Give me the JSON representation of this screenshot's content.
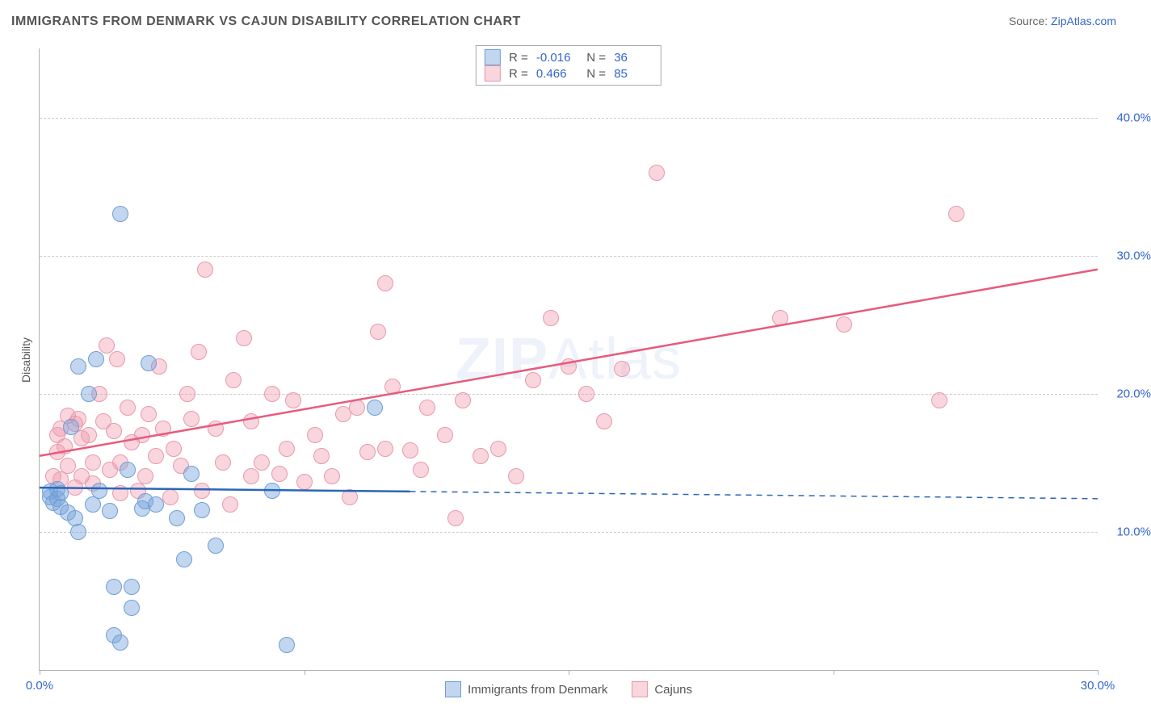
{
  "title": "IMMIGRANTS FROM DENMARK VS CAJUN DISABILITY CORRELATION CHART",
  "source_label": "Source: ",
  "source_link": "ZipAtlas.com",
  "ylabel": "Disability",
  "watermark_bold": "ZIP",
  "watermark_thin": "Atlas",
  "colors": {
    "blue_fill": "rgba(120,165,220,0.45)",
    "blue_stroke": "#6f9ed6",
    "pink_fill": "rgba(240,150,170,0.40)",
    "pink_stroke": "#e89aab",
    "blue_line": "#2a66b8",
    "pink_line": "#e85a7c",
    "axis_value": "#3366cc",
    "grid": "#cccccc"
  },
  "chart": {
    "type": "scatter",
    "x_range_pct": [
      0,
      30
    ],
    "y_range_pct": [
      0,
      45
    ],
    "y_ticks_pct": [
      10,
      20,
      30,
      40
    ],
    "y_tick_labels": [
      "10.0%",
      "20.0%",
      "30.0%",
      "40.0%"
    ],
    "x_ticks_pct": [
      0,
      7.5,
      15,
      22.5,
      30
    ],
    "x_tick_labels": [
      "0.0%",
      "",
      "",
      "",
      "30.0%"
    ],
    "marker_radius": 9,
    "marker_opacity": 0.45,
    "background": "#ffffff"
  },
  "stats_box": {
    "rows": [
      {
        "swatch": "blue",
        "r_label": "R =",
        "r": "-0.016",
        "n_label": "N =",
        "n": "36"
      },
      {
        "swatch": "pink",
        "r_label": "R =",
        "r": "0.466",
        "n_label": "N =",
        "n": "85"
      }
    ]
  },
  "legend_bottom": [
    {
      "swatch": "blue",
      "label": "Immigrants from Denmark"
    },
    {
      "swatch": "pink",
      "label": "Cajuns"
    }
  ],
  "trendlines": {
    "blue": {
      "y_at_x0_pct": 13.2,
      "y_at_x30_pct": 12.4,
      "solid_x_end_pct": 10.5,
      "stroke_width": 2.5
    },
    "pink": {
      "y_at_x0_pct": 15.5,
      "y_at_x30_pct": 29.0,
      "solid_x_end_pct": 30,
      "stroke_width": 2.5
    }
  },
  "points_blue": [
    [
      0.3,
      12.5
    ],
    [
      0.3,
      12.9
    ],
    [
      0.4,
      12.1
    ],
    [
      0.5,
      13.1
    ],
    [
      0.5,
      12.4
    ],
    [
      0.6,
      11.8
    ],
    [
      0.6,
      12.8
    ],
    [
      0.8,
      11.4
    ],
    [
      0.9,
      17.6
    ],
    [
      1.0,
      11.0
    ],
    [
      1.1,
      10.0
    ],
    [
      1.1,
      22.0
    ],
    [
      1.4,
      20.0
    ],
    [
      1.5,
      12.0
    ],
    [
      1.6,
      22.5
    ],
    [
      1.7,
      13.0
    ],
    [
      2.0,
      11.5
    ],
    [
      2.1,
      6.0
    ],
    [
      2.1,
      2.5
    ],
    [
      2.3,
      2.0
    ],
    [
      2.3,
      33.0
    ],
    [
      2.5,
      14.5
    ],
    [
      2.6,
      6.0
    ],
    [
      2.6,
      4.5
    ],
    [
      2.9,
      11.7
    ],
    [
      3.0,
      12.2
    ],
    [
      3.1,
      22.2
    ],
    [
      3.3,
      12.0
    ],
    [
      3.9,
      11.0
    ],
    [
      4.1,
      8.0
    ],
    [
      4.3,
      14.2
    ],
    [
      4.6,
      11.6
    ],
    [
      5.0,
      9.0
    ],
    [
      6.6,
      13.0
    ],
    [
      7.0,
      1.8
    ],
    [
      9.5,
      19.0
    ]
  ],
  "points_pink": [
    [
      0.4,
      14.0
    ],
    [
      0.5,
      17.0
    ],
    [
      0.5,
      15.8
    ],
    [
      0.6,
      17.5
    ],
    [
      0.6,
      13.8
    ],
    [
      0.7,
      16.2
    ],
    [
      0.8,
      14.8
    ],
    [
      0.8,
      18.4
    ],
    [
      1.0,
      17.8
    ],
    [
      1.0,
      13.2
    ],
    [
      1.1,
      18.2
    ],
    [
      1.2,
      16.8
    ],
    [
      1.2,
      14.0
    ],
    [
      1.4,
      17.0
    ],
    [
      1.5,
      15.0
    ],
    [
      1.5,
      13.5
    ],
    [
      1.7,
      20.0
    ],
    [
      1.8,
      18.0
    ],
    [
      1.9,
      23.5
    ],
    [
      2.0,
      14.5
    ],
    [
      2.1,
      17.3
    ],
    [
      2.2,
      22.5
    ],
    [
      2.3,
      15.0
    ],
    [
      2.3,
      12.8
    ],
    [
      2.5,
      19.0
    ],
    [
      2.6,
      16.5
    ],
    [
      2.8,
      13.0
    ],
    [
      2.9,
      17.0
    ],
    [
      3.0,
      14.0
    ],
    [
      3.1,
      18.5
    ],
    [
      3.3,
      15.5
    ],
    [
      3.4,
      22.0
    ],
    [
      3.5,
      17.5
    ],
    [
      3.7,
      12.5
    ],
    [
      3.8,
      16.0
    ],
    [
      4.0,
      14.8
    ],
    [
      4.2,
      20.0
    ],
    [
      4.3,
      18.2
    ],
    [
      4.5,
      23.0
    ],
    [
      4.6,
      13.0
    ],
    [
      4.7,
      29.0
    ],
    [
      5.0,
      17.5
    ],
    [
      5.2,
      15.0
    ],
    [
      5.4,
      12.0
    ],
    [
      5.5,
      21.0
    ],
    [
      5.8,
      24.0
    ],
    [
      6.0,
      14.0
    ],
    [
      6.0,
      18.0
    ],
    [
      6.3,
      15.0
    ],
    [
      6.6,
      20.0
    ],
    [
      6.8,
      14.2
    ],
    [
      7.0,
      16.0
    ],
    [
      7.2,
      19.5
    ],
    [
      7.5,
      13.6
    ],
    [
      7.8,
      17.0
    ],
    [
      8.0,
      15.5
    ],
    [
      8.3,
      14.0
    ],
    [
      8.6,
      18.5
    ],
    [
      8.8,
      12.5
    ],
    [
      9.0,
      19.0
    ],
    [
      9.3,
      15.8
    ],
    [
      9.6,
      24.5
    ],
    [
      9.8,
      16.0
    ],
    [
      9.8,
      28.0
    ],
    [
      10.0,
      20.5
    ],
    [
      10.5,
      15.9
    ],
    [
      10.8,
      14.5
    ],
    [
      11.0,
      19.0
    ],
    [
      11.5,
      17.0
    ],
    [
      11.8,
      11.0
    ],
    [
      12.0,
      19.5
    ],
    [
      12.5,
      15.5
    ],
    [
      13.0,
      16.0
    ],
    [
      13.5,
      14.0
    ],
    [
      14.0,
      21.0
    ],
    [
      14.5,
      25.5
    ],
    [
      15.0,
      22.0
    ],
    [
      15.5,
      20.0
    ],
    [
      16.0,
      18.0
    ],
    [
      16.5,
      21.8
    ],
    [
      17.5,
      36.0
    ],
    [
      21.0,
      25.5
    ],
    [
      22.8,
      25.0
    ],
    [
      25.5,
      19.5
    ],
    [
      26.0,
      33.0
    ]
  ]
}
